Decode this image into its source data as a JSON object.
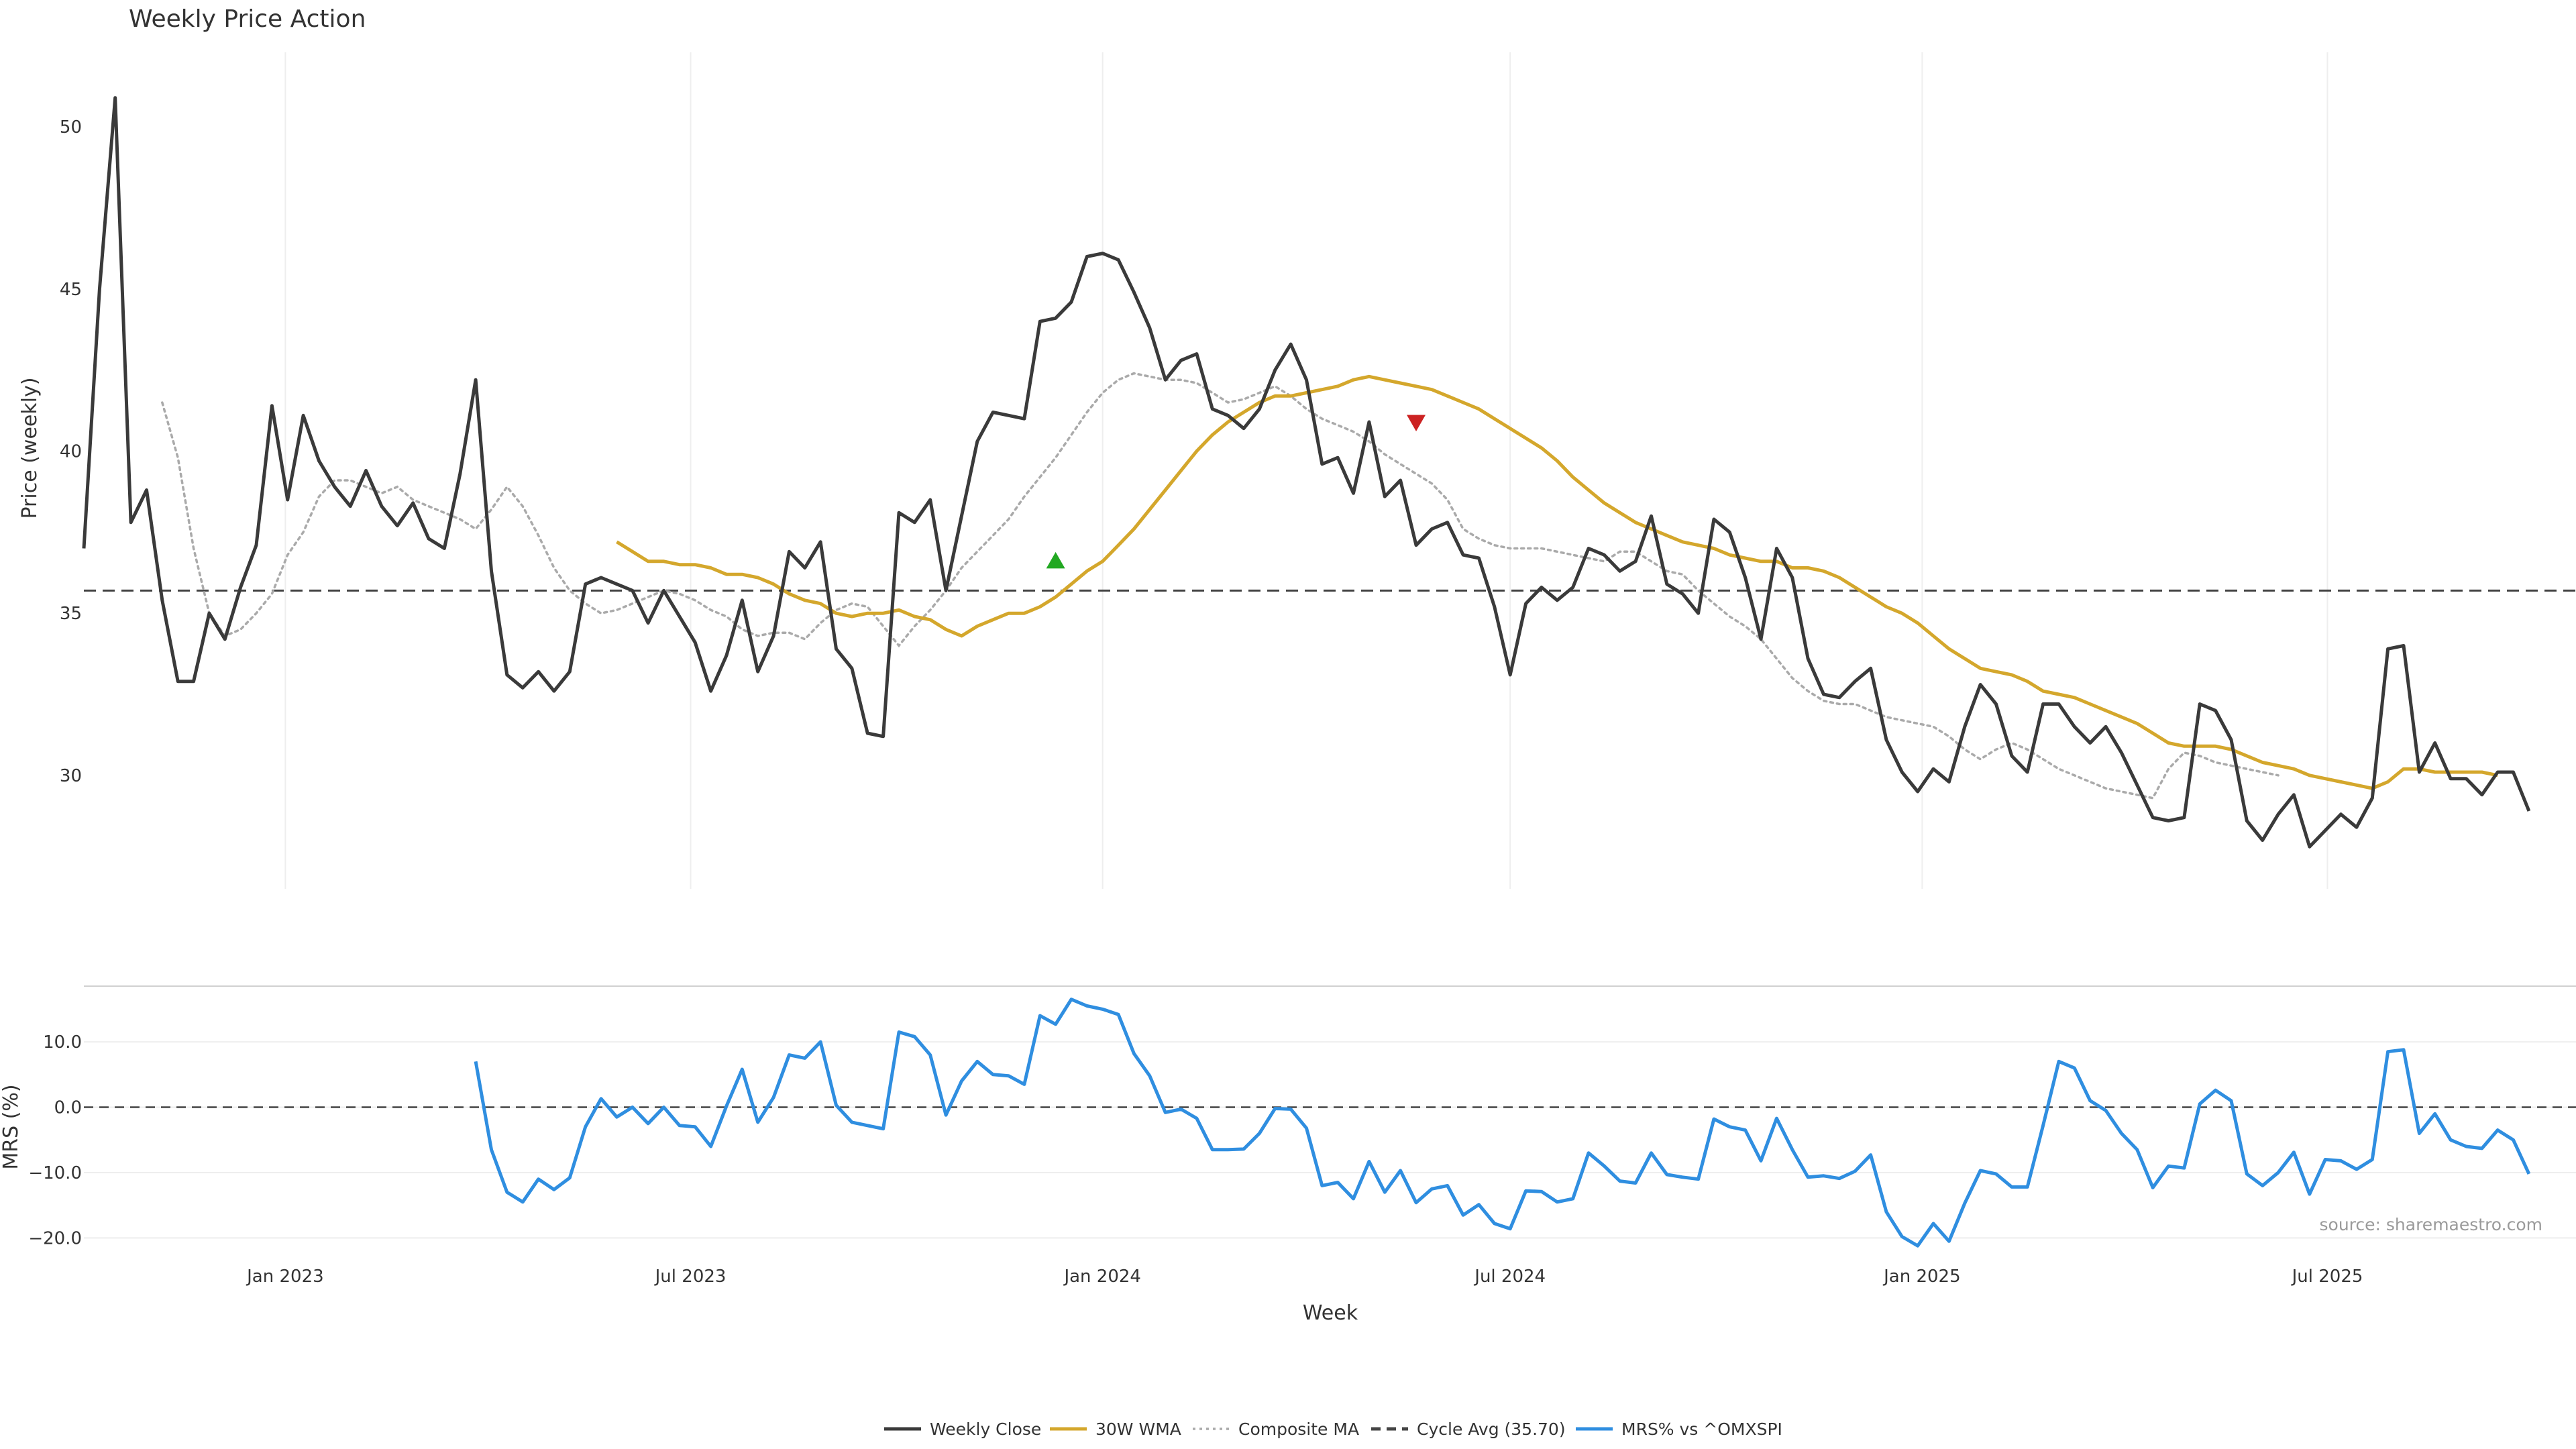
{
  "colors": {
    "close": "#3a3a3a",
    "wma": "#d4a72c",
    "composite": "#aaaaaa",
    "cycle": "#444444",
    "mrs": "#2f8ee0",
    "buy_marker": "#22a822",
    "sell_marker": "#cc2222",
    "grid": "#eeeeee",
    "separator": "#d0d0d0"
  },
  "chart_data": [
    {
      "type": "line",
      "title": "Weekly Price Action",
      "ylabel": "Price (weekly)",
      "xlabel": "Week",
      "x_range": [
        "2022-10-03",
        "2025-10-20"
      ],
      "ylim": [
        26.5,
        52.3
      ],
      "y_ticks": [
        30,
        35,
        40,
        45,
        50
      ],
      "x_ticks": [
        {
          "date": "2023-01-01",
          "label": "Jan 2023"
        },
        {
          "date": "2023-07-01",
          "label": "Jul 2023"
        },
        {
          "date": "2024-01-01",
          "label": "Jan 2024"
        },
        {
          "date": "2024-07-01",
          "label": "Jul 2024"
        },
        {
          "date": "2025-01-01",
          "label": "Jan 2025"
        },
        {
          "date": "2025-07-01",
          "label": "Jul 2025"
        }
      ],
      "grid": "vertical",
      "series": [
        {
          "name": "Weekly Close",
          "start": "2022-10-03",
          "step_weeks": 1,
          "values": [
            37.0,
            45.0,
            50.9,
            37.8,
            38.8,
            35.4,
            32.9,
            32.9,
            35.0,
            34.2,
            35.8,
            37.1,
            41.4,
            38.5,
            41.1,
            39.7,
            38.9,
            38.3,
            39.4,
            38.3,
            37.7,
            38.4,
            37.3,
            37.0,
            39.3,
            42.2,
            36.3,
            33.1,
            32.7,
            33.2,
            32.6,
            33.2,
            35.9,
            36.1,
            35.9,
            35.7,
            34.7,
            35.7,
            34.9,
            34.1,
            32.6,
            33.7,
            35.4,
            33.2,
            34.3,
            36.9,
            36.4,
            37.2,
            33.9,
            33.3,
            31.3,
            31.2,
            38.1,
            37.8,
            38.5,
            35.7,
            38.0,
            40.3,
            41.2,
            41.1,
            41.0,
            44.0,
            44.1,
            44.6,
            46.0,
            46.1,
            45.9,
            44.9,
            43.8,
            42.2,
            42.8,
            43.0,
            41.3,
            41.1,
            40.7,
            41.3,
            42.5,
            43.3,
            42.2,
            39.6,
            39.8,
            38.7,
            40.9,
            38.6,
            39.1,
            37.1,
            37.6,
            37.8,
            36.8,
            36.7,
            35.2,
            33.1,
            35.3,
            35.8,
            35.4,
            35.8,
            37.0,
            36.8,
            36.3,
            36.6,
            38.0,
            35.9,
            35.6,
            35.0,
            37.9,
            37.5,
            36.1,
            34.2,
            37.0,
            36.1,
            33.6,
            32.5,
            32.4,
            32.9,
            33.3,
            31.1,
            30.1,
            29.5,
            30.2,
            29.8,
            31.5,
            32.8,
            32.2,
            30.6,
            30.1,
            32.2,
            32.2,
            31.5,
            31.0,
            31.5,
            30.7,
            29.7,
            28.7,
            28.6,
            28.7,
            32.2,
            32.0,
            31.1,
            28.6,
            28.0,
            28.8,
            29.4,
            27.8,
            28.3,
            28.8,
            28.4,
            29.3,
            33.9,
            34.0,
            30.1,
            31.0,
            29.9,
            29.9,
            29.4,
            30.1,
            30.1,
            28.9
          ]
        },
        {
          "name": "30W WMA",
          "start": "2023-05-29",
          "step_weeks": 1,
          "values": [
            37.2,
            36.9,
            36.6,
            36.6,
            36.5,
            36.5,
            36.4,
            36.2,
            36.2,
            36.1,
            35.9,
            35.6,
            35.4,
            35.3,
            35.0,
            34.9,
            35.0,
            35.0,
            35.1,
            34.9,
            34.8,
            34.5,
            34.3,
            34.6,
            34.8,
            35.0,
            35.0,
            35.2,
            35.5,
            35.9,
            36.3,
            36.6,
            37.1,
            37.6,
            38.2,
            38.8,
            39.4,
            40.0,
            40.5,
            40.9,
            41.2,
            41.5,
            41.7,
            41.7,
            41.8,
            41.9,
            42.0,
            42.2,
            42.3,
            42.2,
            42.1,
            42.0,
            41.9,
            41.7,
            41.5,
            41.3,
            41.0,
            40.7,
            40.4,
            40.1,
            39.7,
            39.2,
            38.8,
            38.4,
            38.1,
            37.8,
            37.6,
            37.4,
            37.2,
            37.1,
            37.0,
            36.8,
            36.7,
            36.6,
            36.6,
            36.4,
            36.4,
            36.3,
            36.1,
            35.8,
            35.5,
            35.2,
            35.0,
            34.7,
            34.3,
            33.9,
            33.6,
            33.3,
            33.2,
            33.1,
            32.9,
            32.6,
            32.5,
            32.4,
            32.2,
            32.0,
            31.8,
            31.6,
            31.3,
            31.0,
            30.9,
            30.9,
            30.9,
            30.8,
            30.6,
            30.4,
            30.3,
            30.2,
            30.0,
            29.9,
            29.8,
            29.7,
            29.6,
            29.8,
            30.2,
            30.2,
            30.1,
            30.1,
            30.1,
            30.1,
            30.0
          ]
        },
        {
          "name": "Composite MA",
          "start": "2022-11-07",
          "step_weeks": 1,
          "values": [
            41.5,
            39.8,
            37.0,
            35.0,
            34.3,
            34.5,
            35.0,
            35.6,
            36.8,
            37.5,
            38.6,
            39.1,
            39.1,
            38.9,
            38.7,
            38.9,
            38.5,
            38.3,
            38.1,
            37.9,
            37.6,
            38.2,
            38.9,
            38.3,
            37.4,
            36.4,
            35.7,
            35.3,
            35.0,
            35.1,
            35.3,
            35.5,
            35.7,
            35.6,
            35.4,
            35.1,
            34.9,
            34.5,
            34.3,
            34.4,
            34.4,
            34.2,
            34.7,
            35.1,
            35.3,
            35.2,
            34.6,
            34.0,
            34.6,
            35.1,
            35.7,
            36.4,
            36.9,
            37.4,
            37.9,
            38.6,
            39.2,
            39.8,
            40.5,
            41.2,
            41.8,
            42.2,
            42.4,
            42.3,
            42.2,
            42.2,
            42.1,
            41.8,
            41.5,
            41.6,
            41.8,
            42.0,
            41.7,
            41.3,
            41.0,
            40.8,
            40.6,
            40.3,
            39.9,
            39.6,
            39.3,
            39.0,
            38.5,
            37.6,
            37.3,
            37.1,
            37.0,
            37.0,
            37.0,
            36.9,
            36.8,
            36.7,
            36.6,
            36.9,
            36.9,
            36.6,
            36.3,
            36.2,
            35.7,
            35.3,
            34.9,
            34.6,
            34.2,
            33.6,
            33.0,
            32.6,
            32.3,
            32.2,
            32.2,
            32.0,
            31.8,
            31.7,
            31.6,
            31.5,
            31.2,
            30.8,
            30.5,
            30.8,
            31.0,
            30.8,
            30.5,
            30.2,
            30.0,
            29.8,
            29.6,
            29.5,
            29.4,
            29.3,
            30.2,
            30.7,
            30.6,
            30.4,
            30.3,
            30.2,
            30.1,
            30.0
          ]
        },
        {
          "name": "Cycle Avg (35.70)",
          "style": "dashed",
          "value": 35.7
        }
      ],
      "markers": [
        {
          "type": "buy",
          "shape": "triangle-up",
          "date": "2023-12-11",
          "value": 36.6
        },
        {
          "type": "sell",
          "shape": "triangle-down",
          "date": "2024-05-20",
          "value": 40.9
        }
      ]
    },
    {
      "type": "line",
      "ylabel": "MRS (%)",
      "ylim": [
        -21.5,
        17.5
      ],
      "y_ticks": [
        {
          "value": 10,
          "label": "10.0"
        },
        {
          "value": 0,
          "label": "0.0"
        },
        {
          "value": -10,
          "label": "−10.0"
        },
        {
          "value": -20,
          "label": "−20.0"
        }
      ],
      "zero_line": "dashed",
      "series": [
        {
          "name": "MRS% vs ^OMXSPI",
          "start": "2023-03-27",
          "step_weeks": 1,
          "values": [
            7.0,
            -6.5,
            -13.0,
            -14.5,
            -11.0,
            -12.6,
            -10.8,
            -3.0,
            1.3,
            -1.5,
            0.0,
            -2.5,
            0.0,
            -2.8,
            -3.0,
            -6.0,
            0.2,
            5.8,
            -2.3,
            1.5,
            8.0,
            7.5,
            10.0,
            0.3,
            -2.3,
            -2.8,
            -3.3,
            11.5,
            10.8,
            8.0,
            -1.2,
            4.0,
            7.0,
            5.0,
            4.8,
            3.5,
            14.0,
            12.7,
            16.5,
            15.5,
            15.0,
            14.2,
            8.2,
            4.8,
            -0.8,
            -0.3,
            -1.7,
            -6.5,
            -6.5,
            -6.4,
            -4.0,
            -0.2,
            -0.3,
            -3.2,
            -12.0,
            -11.5,
            -14.0,
            -8.3,
            -13.0,
            -9.7,
            -14.6,
            -12.5,
            -12.0,
            -16.5,
            -14.9,
            -17.8,
            -18.6,
            -12.8,
            -12.9,
            -14.5,
            -14.0,
            -7.0,
            -9.0,
            -11.3,
            -11.6,
            -7.0,
            -10.3,
            -10.7,
            -11.0,
            -1.8,
            -3.0,
            -3.5,
            -8.2,
            -1.7,
            -6.5,
            -10.7,
            -10.5,
            -10.9,
            -9.8,
            -7.3,
            -16.0,
            -19.8,
            -21.2,
            -17.8,
            -20.5,
            -14.7,
            -9.7,
            -10.2,
            -12.2,
            -12.2,
            -2.8,
            7.0,
            6.0,
            1.0,
            -0.5,
            -4.0,
            -6.5,
            -12.3,
            -9.0,
            -9.3,
            0.5,
            2.6,
            1.0,
            -10.2,
            -12.0,
            -10.0,
            -6.9,
            -13.3,
            -8.0,
            -8.2,
            -9.5,
            -8.0,
            8.5,
            8.8,
            -4.0,
            -1.0,
            -5.0,
            -6.0,
            -6.3,
            -3.5,
            -5.0,
            -10.2
          ]
        }
      ]
    }
  ],
  "legend": {
    "position": "bottom-center",
    "items": [
      {
        "label": "Weekly Close",
        "style": "solid",
        "color_key": "close"
      },
      {
        "label": "30W WMA",
        "style": "solid",
        "color_key": "wma"
      },
      {
        "label": "Composite MA",
        "style": "dotted",
        "color_key": "composite"
      },
      {
        "label": "Cycle Avg (35.70)",
        "style": "dashed",
        "color_key": "cycle"
      },
      {
        "label": "MRS% vs ^OMXSPI",
        "style": "solid",
        "color_key": "mrs"
      }
    ]
  },
  "source_note": "source: sharemaestro.com"
}
